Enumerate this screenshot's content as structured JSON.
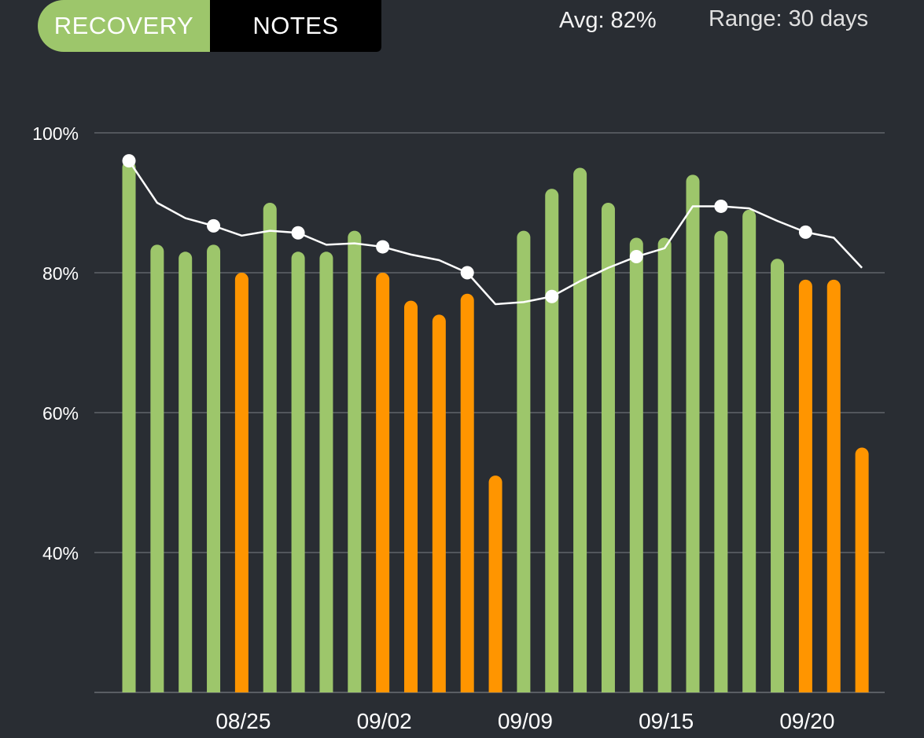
{
  "tabs": {
    "recovery": "RECOVERY",
    "notes": "NOTES"
  },
  "stats": {
    "avg": "Avg: 82%",
    "range": "Range: 30 days"
  },
  "colors": {
    "background": "#292d33",
    "green": "#9dc66b",
    "orange": "#ff9500",
    "grid": "#6b6f75",
    "line": "#ffffff"
  },
  "chart_data": {
    "type": "bar",
    "y_ticks": [
      "100%",
      "80%",
      "60%",
      "40%"
    ],
    "ylim": [
      20,
      100
    ],
    "x_tick_labels": [
      {
        "label": "08/25",
        "index": 4
      },
      {
        "label": "09/02",
        "index": 9
      },
      {
        "label": "09/09",
        "index": 14
      },
      {
        "label": "09/15",
        "index": 19
      },
      {
        "label": "09/20",
        "index": 24
      }
    ],
    "bars": [
      {
        "value": 96,
        "color": "green"
      },
      {
        "value": 84,
        "color": "green"
      },
      {
        "value": 83,
        "color": "green"
      },
      {
        "value": 84,
        "color": "green"
      },
      {
        "value": 80,
        "color": "orange"
      },
      {
        "value": 90,
        "color": "green"
      },
      {
        "value": 83,
        "color": "green"
      },
      {
        "value": 83,
        "color": "green"
      },
      {
        "value": 86,
        "color": "green"
      },
      {
        "value": 80,
        "color": "orange"
      },
      {
        "value": 76,
        "color": "orange"
      },
      {
        "value": 74,
        "color": "orange"
      },
      {
        "value": 77,
        "color": "orange"
      },
      {
        "value": 51,
        "color": "orange"
      },
      {
        "value": 86,
        "color": "green"
      },
      {
        "value": 92,
        "color": "green"
      },
      {
        "value": 95,
        "color": "green"
      },
      {
        "value": 90,
        "color": "green"
      },
      {
        "value": 85,
        "color": "green"
      },
      {
        "value": 85,
        "color": "green"
      },
      {
        "value": 94,
        "color": "green"
      },
      {
        "value": 86,
        "color": "green"
      },
      {
        "value": 89,
        "color": "green"
      },
      {
        "value": 82,
        "color": "green"
      },
      {
        "value": 79,
        "color": "orange"
      },
      {
        "value": 79,
        "color": "orange"
      },
      {
        "value": 55,
        "color": "orange"
      }
    ],
    "trend_line": [
      96,
      90,
      87.8,
      86.7,
      85.3,
      86,
      85.7,
      84,
      84.2,
      83.7,
      82.6,
      81.8,
      80,
      75.5,
      75.8,
      76.6,
      78.8,
      80.7,
      82.3,
      83.5,
      89.5,
      89.5,
      89.2,
      87.4,
      85.8,
      85,
      80.7
    ],
    "trend_markers": [
      0,
      3,
      6,
      9,
      12,
      15,
      18,
      21,
      24
    ]
  }
}
